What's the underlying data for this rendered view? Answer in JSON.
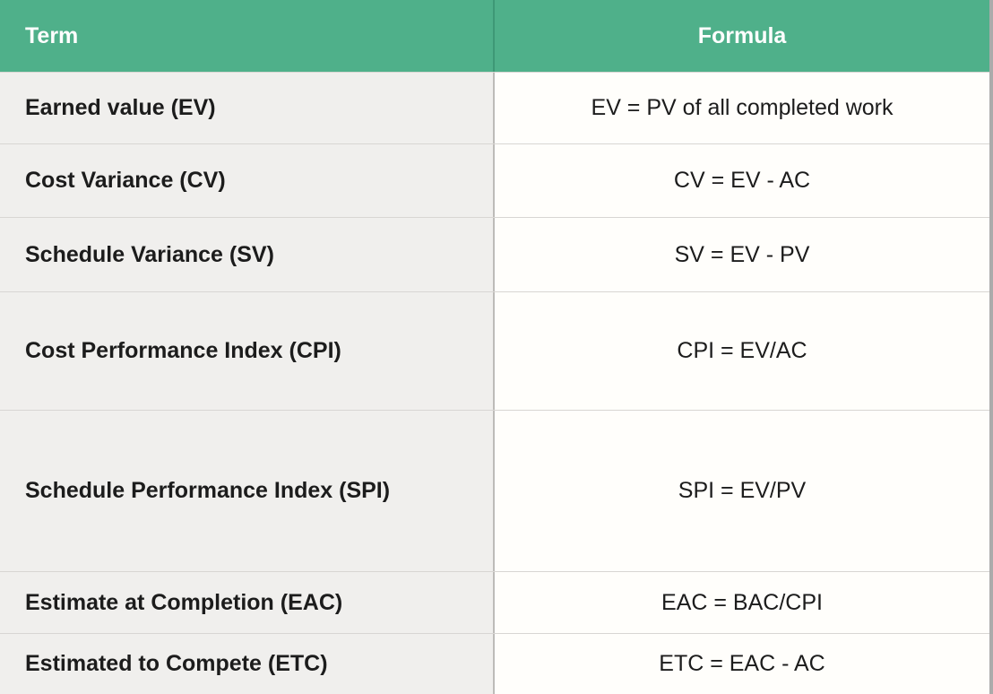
{
  "colors": {
    "header_bg": "#4FB08A",
    "header_text": "#FEFEFE",
    "term_cell_bg": "#F0EFED",
    "formula_cell_bg": "#FFFEFB"
  },
  "table": {
    "columns": [
      {
        "label": "Term"
      },
      {
        "label": "Formula"
      }
    ],
    "rows": [
      {
        "term": "Earned value (EV)",
        "formula": "EV = PV of all completed work"
      },
      {
        "term": "Cost Variance (CV)",
        "formula": "CV = EV - AC"
      },
      {
        "term": "Schedule Variance (SV)",
        "formula": "SV = EV - PV"
      },
      {
        "term": "Cost Performance Index (CPI)",
        "formula": "CPI = EV/AC"
      },
      {
        "term": "Schedule Performance Index (SPI)",
        "formula": "SPI = EV/PV"
      },
      {
        "term": "Estimate at Completion (EAC)",
        "formula": "EAC = BAC/CPI"
      },
      {
        "term": "Estimated to Compete (ETC)",
        "formula": "ETC = EAC - AC"
      }
    ]
  },
  "chart_data": {
    "type": "table",
    "title": "",
    "columns": [
      "Term",
      "Formula"
    ],
    "rows": [
      [
        "Earned value (EV)",
        "EV = PV of all completed work"
      ],
      [
        "Cost Variance (CV)",
        "CV = EV - AC"
      ],
      [
        "Schedule Variance (SV)",
        "SV = EV - PV"
      ],
      [
        "Cost Performance Index (CPI)",
        "CPI = EV/AC"
      ],
      [
        "Schedule Performance Index (SPI)",
        "SPI = EV/PV"
      ],
      [
        "Estimate at Completion (EAC)",
        "EAC = BAC/CPI"
      ],
      [
        "Estimated to Compete (ETC)",
        "ETC = EAC - AC"
      ]
    ]
  }
}
